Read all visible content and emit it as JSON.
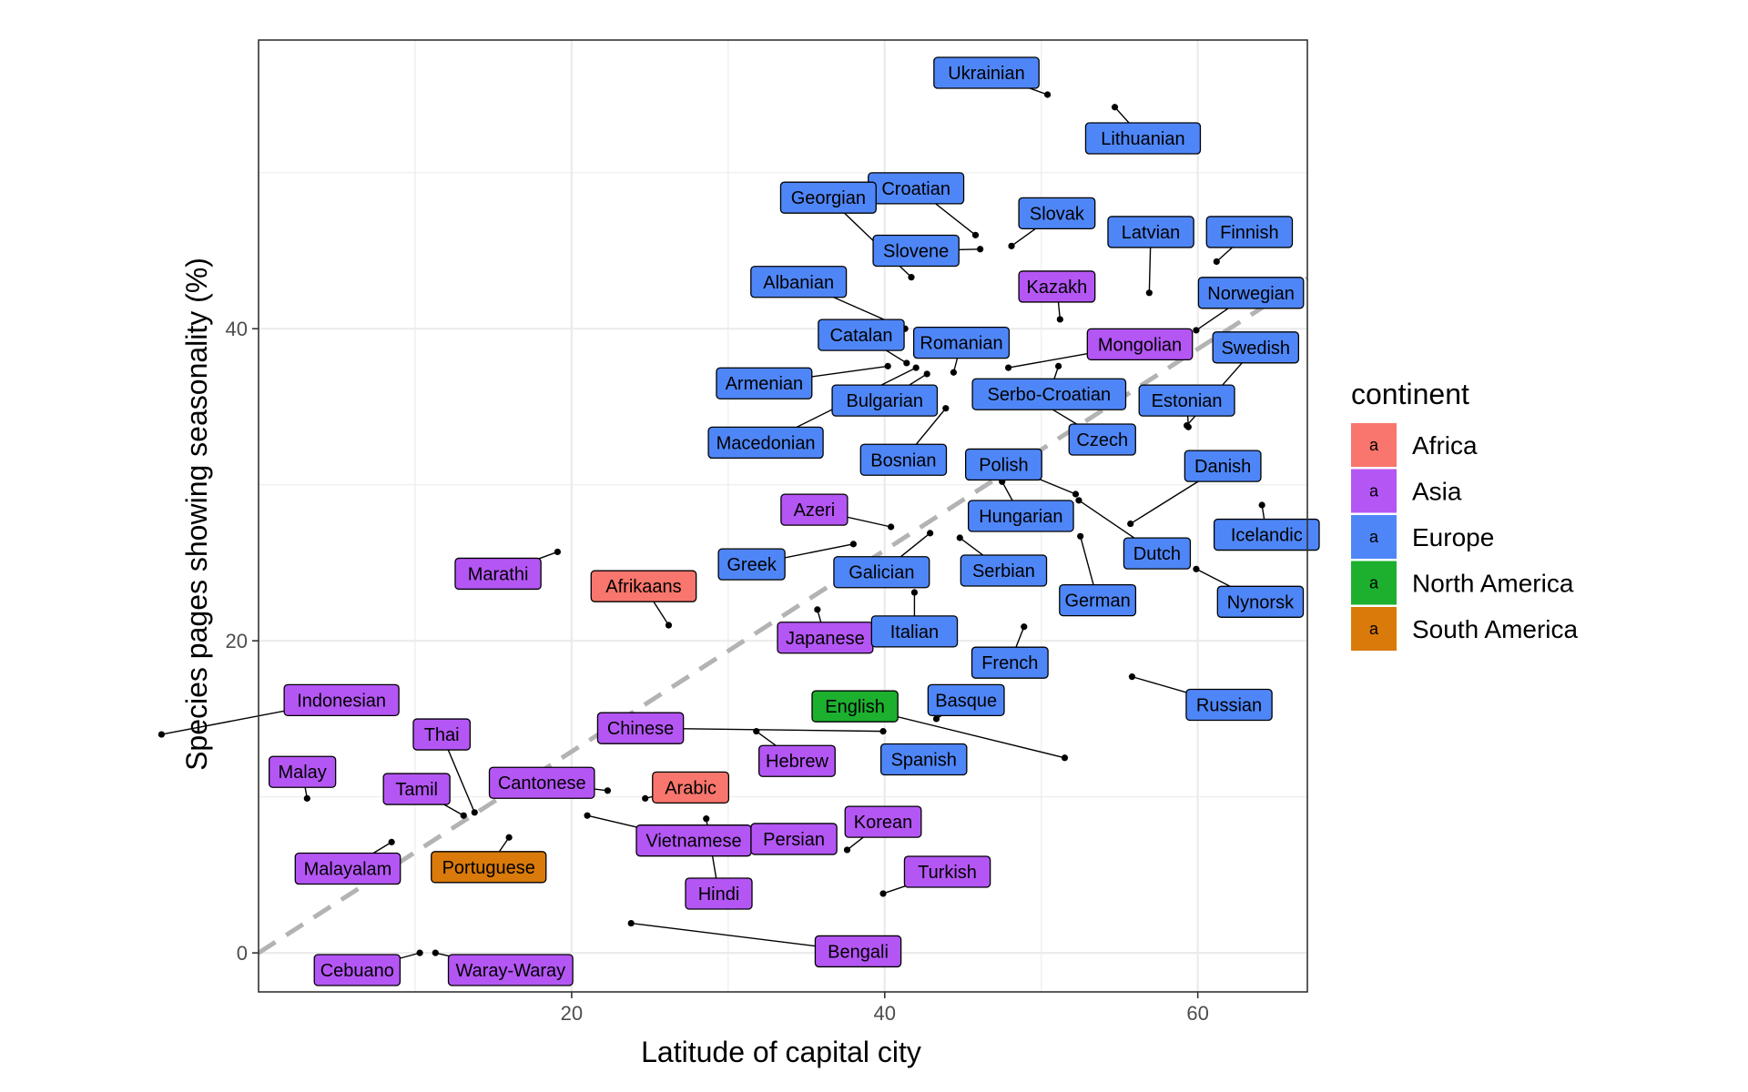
{
  "chart_data": {
    "type": "scatter",
    "xlabel": "Latitude of capital city",
    "ylabel": "Species pages showing seasonality (%)",
    "xlim": [
      0,
      67
    ],
    "ylim": [
      -2.5,
      58.5
    ],
    "x_ticks": [
      20,
      40,
      60
    ],
    "y_ticks": [
      0,
      20,
      40
    ],
    "grid": true,
    "reference_line": {
      "style": "dashed",
      "color": "#b3b3b3",
      "slope": 0.645,
      "intercept": 0
    },
    "legend": {
      "title": "continent",
      "placement": "right",
      "key_glyph": "a",
      "entries": [
        {
          "name": "Africa",
          "color": "#F8766D"
        },
        {
          "name": "Asia",
          "color": "#B456F4"
        },
        {
          "name": "Europe",
          "color": "#4F86F7"
        },
        {
          "name": "North America",
          "color": "#1DB02F"
        },
        {
          "name": "South America",
          "color": "#D97A0A"
        }
      ]
    },
    "points": [
      {
        "label": "Ukrainian",
        "x": 50.4,
        "y": 55.0,
        "continent": "Europe",
        "lx": 46.5,
        "ly": 56.4
      },
      {
        "label": "Lithuanian",
        "x": 54.7,
        "y": 54.2,
        "continent": "Europe",
        "lx": 56.5,
        "ly": 52.2
      },
      {
        "label": "Croatian",
        "x": 45.8,
        "y": 46.0,
        "continent": "Europe",
        "lx": 42.0,
        "ly": 49.0
      },
      {
        "label": "Georgian",
        "x": 41.7,
        "y": 43.3,
        "continent": "Europe",
        "lx": 36.4,
        "ly": 48.4
      },
      {
        "label": "Slovene",
        "x": 46.1,
        "y": 45.1,
        "continent": "Europe",
        "lx": 42.0,
        "ly": 45.0
      },
      {
        "label": "Slovak",
        "x": 48.1,
        "y": 45.3,
        "continent": "Europe",
        "lx": 51.0,
        "ly": 47.4
      },
      {
        "label": "Latvian",
        "x": 56.9,
        "y": 42.3,
        "continent": "Europe",
        "lx": 57.0,
        "ly": 46.2
      },
      {
        "label": "Finnish",
        "x": 61.2,
        "y": 44.3,
        "continent": "Europe",
        "lx": 63.3,
        "ly": 46.2
      },
      {
        "label": "Albanian",
        "x": 41.3,
        "y": 40.0,
        "continent": "Europe",
        "lx": 34.5,
        "ly": 43.0
      },
      {
        "label": "Kazakh",
        "x": 51.2,
        "y": 40.6,
        "continent": "Asia",
        "lx": 51.0,
        "ly": 42.7
      },
      {
        "label": "Norwegian",
        "x": 59.9,
        "y": 39.9,
        "continent": "Europe",
        "lx": 63.4,
        "ly": 42.3
      },
      {
        "label": "Catalan",
        "x": 41.4,
        "y": 37.8,
        "continent": "Europe",
        "lx": 38.5,
        "ly": 39.6
      },
      {
        "label": "Romanian",
        "x": 44.4,
        "y": 37.2,
        "continent": "Europe",
        "lx": 44.9,
        "ly": 39.1
      },
      {
        "label": "Mongolian",
        "x": 47.9,
        "y": 37.5,
        "continent": "Asia",
        "lx": 56.3,
        "ly": 39.0
      },
      {
        "label": "Swedish",
        "x": 59.3,
        "y": 33.8,
        "continent": "Europe",
        "lx": 63.7,
        "ly": 38.8
      },
      {
        "label": "Armenian",
        "x": 40.2,
        "y": 37.6,
        "continent": "Europe",
        "lx": 32.3,
        "ly": 36.5
      },
      {
        "label": "Bulgarian",
        "x": 42.7,
        "y": 37.1,
        "continent": "Europe",
        "lx": 40.0,
        "ly": 35.4
      },
      {
        "label": "Serbo-Croatian",
        "x": 51.1,
        "y": 37.6,
        "continent": "Europe",
        "lx": 50.5,
        "ly": 35.8
      },
      {
        "label": "Estonian",
        "x": 59.4,
        "y": 33.7,
        "continent": "Europe",
        "lx": 59.3,
        "ly": 35.4
      },
      {
        "label": "Macedonian",
        "x": 42.0,
        "y": 37.5,
        "continent": "Europe",
        "lx": 32.4,
        "ly": 32.7
      },
      {
        "label": "Bosnian",
        "x": 43.9,
        "y": 34.9,
        "continent": "Europe",
        "lx": 41.2,
        "ly": 31.6
      },
      {
        "label": "Czech",
        "x": 50.1,
        "y": 35.2,
        "continent": "Europe",
        "lx": 53.9,
        "ly": 32.9
      },
      {
        "label": "Polish",
        "x": 52.2,
        "y": 29.4,
        "continent": "Europe",
        "lx": 47.6,
        "ly": 31.3
      },
      {
        "label": "Danish",
        "x": 55.7,
        "y": 27.5,
        "continent": "Europe",
        "lx": 61.6,
        "ly": 31.2
      },
      {
        "label": "Azeri",
        "x": 40.4,
        "y": 27.3,
        "continent": "Asia",
        "lx": 35.5,
        "ly": 28.4
      },
      {
        "label": "Hungarian",
        "x": 47.5,
        "y": 30.2,
        "continent": "Europe",
        "lx": 48.7,
        "ly": 28.0
      },
      {
        "label": "Icelandic",
        "x": 64.1,
        "y": 28.7,
        "continent": "Europe",
        "lx": 64.4,
        "ly": 26.8
      },
      {
        "label": "Greek",
        "x": 38.0,
        "y": 26.2,
        "continent": "Europe",
        "lx": 31.5,
        "ly": 24.9
      },
      {
        "label": "Galician",
        "x": 42.9,
        "y": 26.9,
        "continent": "Europe",
        "lx": 39.8,
        "ly": 24.4
      },
      {
        "label": "Serbian",
        "x": 44.8,
        "y": 26.6,
        "continent": "Europe",
        "lx": 47.6,
        "ly": 24.5
      },
      {
        "label": "Dutch",
        "x": 52.4,
        "y": 29.0,
        "continent": "Europe",
        "lx": 57.4,
        "ly": 25.6
      },
      {
        "label": "Nynorsk",
        "x": 59.9,
        "y": 24.6,
        "continent": "Europe",
        "lx": 64.0,
        "ly": 22.5
      },
      {
        "label": "German",
        "x": 52.5,
        "y": 26.7,
        "continent": "Europe",
        "lx": 53.6,
        "ly": 22.6
      },
      {
        "label": "Marathi",
        "x": 19.1,
        "y": 25.7,
        "continent": "Asia",
        "lx": 15.3,
        "ly": 24.3
      },
      {
        "label": "Afrikaans",
        "x": 26.2,
        "y": 21.0,
        "continent": "Africa",
        "lx": 24.6,
        "ly": 23.5
      },
      {
        "label": "Japanese",
        "x": 35.7,
        "y": 22.0,
        "continent": "Asia",
        "lx": 36.2,
        "ly": 20.2
      },
      {
        "label": "Italian",
        "x": 41.9,
        "y": 23.1,
        "continent": "Europe",
        "lx": 41.9,
        "ly": 20.6
      },
      {
        "label": "French",
        "x": 48.9,
        "y": 20.9,
        "continent": "Europe",
        "lx": 48.0,
        "ly": 18.6
      },
      {
        "label": "Russian",
        "x": 55.8,
        "y": 17.7,
        "continent": "Europe",
        "lx": 62.0,
        "ly": 15.9
      },
      {
        "label": "Indonesian",
        "x": -6.2,
        "y": 14.0,
        "continent": "Asia",
        "lx": 5.3,
        "ly": 16.2
      },
      {
        "label": "Chinese",
        "x": 39.9,
        "y": 14.2,
        "continent": "Asia",
        "lx": 24.4,
        "ly": 14.4
      },
      {
        "label": "English",
        "x": 51.5,
        "y": 12.5,
        "continent": "North America",
        "lx": 38.1,
        "ly": 15.8
      },
      {
        "label": "Basque",
        "x": 43.3,
        "y": 15.0,
        "continent": "Europe",
        "lx": 45.2,
        "ly": 16.2
      },
      {
        "label": "Thai",
        "x": 13.8,
        "y": 9.0,
        "continent": "Asia",
        "lx": 11.7,
        "ly": 14.0
      },
      {
        "label": "Hebrew",
        "x": 31.8,
        "y": 14.2,
        "continent": "Asia",
        "lx": 34.4,
        "ly": 12.3
      },
      {
        "label": "Spanish",
        "x": 40.4,
        "y": 11.6,
        "continent": "Europe",
        "lx": 42.5,
        "ly": 12.4
      },
      {
        "label": "Malay",
        "x": 3.1,
        "y": 9.9,
        "continent": "Asia",
        "lx": 2.8,
        "ly": 11.6
      },
      {
        "label": "Tamil",
        "x": 13.1,
        "y": 8.8,
        "continent": "Asia",
        "lx": 10.1,
        "ly": 10.5
      },
      {
        "label": "Cantonese",
        "x": 22.3,
        "y": 10.4,
        "continent": "Asia",
        "lx": 18.1,
        "ly": 10.9
      },
      {
        "label": "Arabic",
        "x": 24.7,
        "y": 9.9,
        "continent": "Africa",
        "lx": 27.6,
        "ly": 10.6
      },
      {
        "label": "Vietnamese",
        "x": 21.0,
        "y": 8.8,
        "continent": "Asia",
        "lx": 27.8,
        "ly": 7.2
      },
      {
        "label": "Persian",
        "x": 35.7,
        "y": 6.6,
        "continent": "Asia",
        "lx": 34.2,
        "ly": 7.3
      },
      {
        "label": "Korean",
        "x": 37.6,
        "y": 6.6,
        "continent": "Asia",
        "lx": 39.9,
        "ly": 8.4
      },
      {
        "label": "Malayalam",
        "x": 8.5,
        "y": 7.1,
        "continent": "Asia",
        "lx": 5.7,
        "ly": 5.4
      },
      {
        "label": "Portuguese",
        "x": 16.0,
        "y": 7.4,
        "continent": "South America",
        "lx": 14.7,
        "ly": 5.5
      },
      {
        "label": "Turkish",
        "x": 39.9,
        "y": 3.8,
        "continent": "Asia",
        "lx": 44.0,
        "ly": 5.2
      },
      {
        "label": "Hindi",
        "x": 28.6,
        "y": 8.6,
        "continent": "Asia",
        "lx": 29.4,
        "ly": 3.8
      },
      {
        "label": "Bengali",
        "x": 23.8,
        "y": 1.9,
        "continent": "Asia",
        "lx": 38.3,
        "ly": 0.1
      },
      {
        "label": "Cebuano",
        "x": 10.3,
        "y": 0.0,
        "continent": "Asia",
        "lx": 6.3,
        "ly": -1.1
      },
      {
        "label": "Waray-Waray",
        "x": 11.3,
        "y": 0.0,
        "continent": "Asia",
        "lx": 16.1,
        "ly": -1.1
      }
    ]
  }
}
